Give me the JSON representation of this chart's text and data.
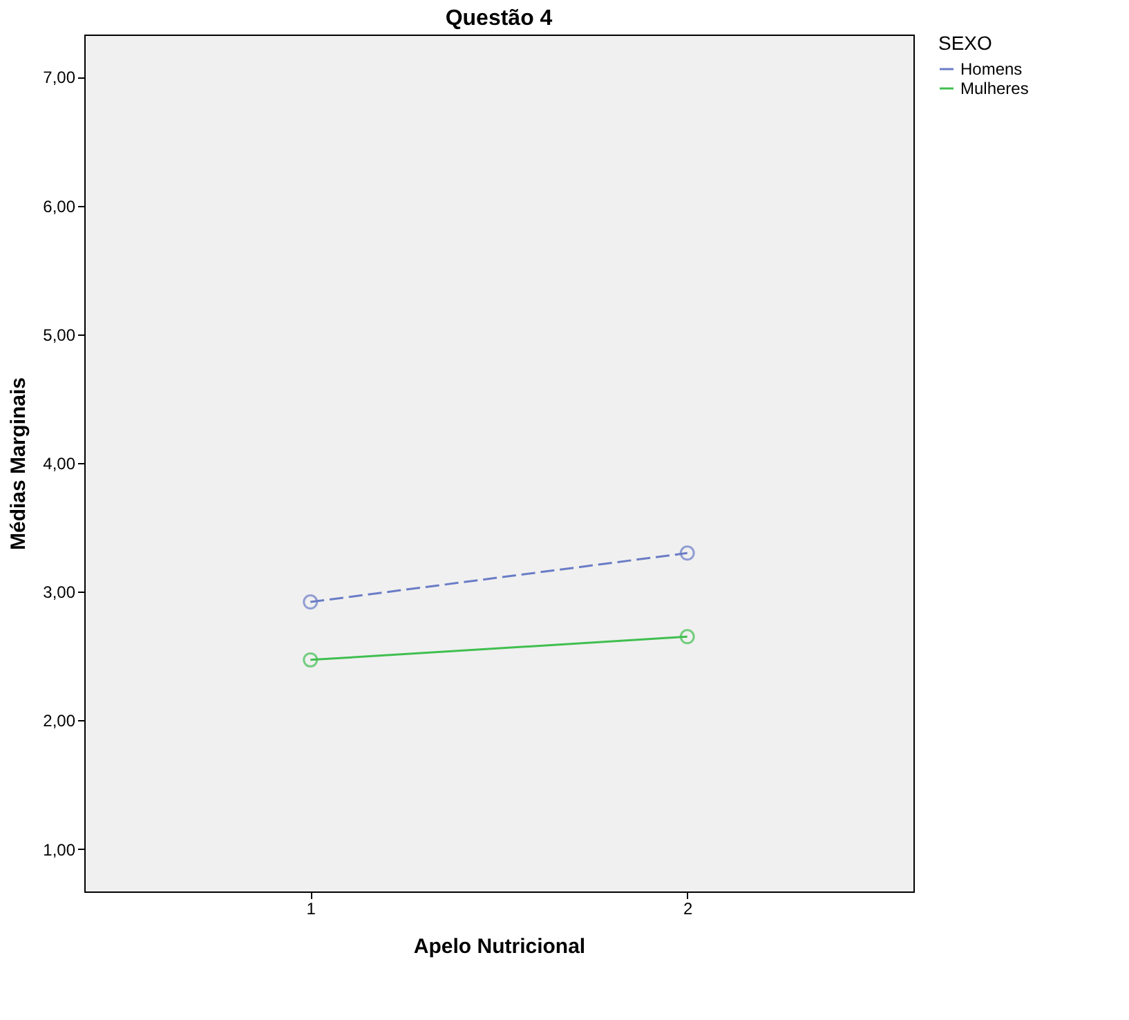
{
  "chart_data": {
    "type": "line",
    "title": "Questão 4",
    "xlabel": "Apelo Nutricional",
    "ylabel": "Médias Marginais",
    "legend_title": "SEXO",
    "categories": [
      "1",
      "2"
    ],
    "series": [
      {
        "name": "Homens",
        "color": "#6a7cc6",
        "values": [
          2.92,
          3.3
        ],
        "line_style": "dashed"
      },
      {
        "name": "Mulheres",
        "color": "#3fbf4f",
        "values": [
          2.47,
          2.65
        ],
        "line_style": "solid"
      }
    ],
    "ylim": [
      0.67,
      7.33
    ],
    "yticks": [
      {
        "value": 1,
        "label": "1,00"
      },
      {
        "value": 2,
        "label": "2,00"
      },
      {
        "value": 3,
        "label": "3,00"
      },
      {
        "value": 4,
        "label": "4,00"
      },
      {
        "value": 5,
        "label": "5,00"
      },
      {
        "value": 6,
        "label": "6,00"
      },
      {
        "value": 7,
        "label": "7,00"
      }
    ],
    "marker": "circle",
    "grid": false,
    "legend": "top right"
  }
}
